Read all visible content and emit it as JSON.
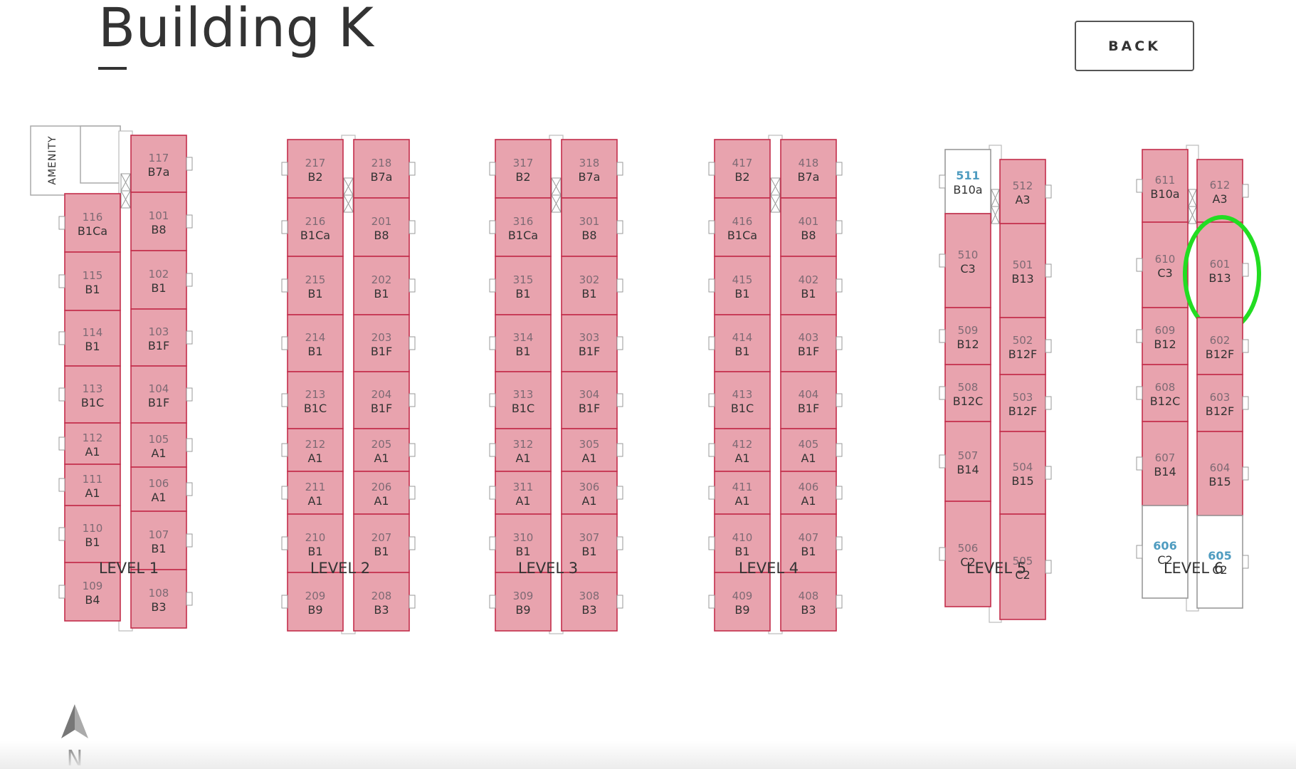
{
  "title": "Building K",
  "back_button": "BACK",
  "compass": "N",
  "colors": {
    "sold_fill": "#e8a3ae",
    "sold_stroke": "#c32e4b",
    "available_number": "#4f9cc0",
    "highlight": "#22dd22"
  },
  "levels": [
    {
      "label": "LEVEL 1",
      "amenity": "AMENITY",
      "left_units": [
        {
          "num": "116",
          "type": "B1Ca"
        },
        {
          "num": "115",
          "type": "B1"
        },
        {
          "num": "114",
          "type": "B1"
        },
        {
          "num": "113",
          "type": "B1C"
        },
        {
          "num": "112",
          "type": "A1"
        },
        {
          "num": "111",
          "type": "A1"
        },
        {
          "num": "110",
          "type": "B1"
        },
        {
          "num": "109",
          "type": "B4"
        }
      ],
      "right_units": [
        {
          "num": "117",
          "type": "B7a"
        },
        {
          "num": "101",
          "type": "B8"
        },
        {
          "num": "102",
          "type": "B1"
        },
        {
          "num": "103",
          "type": "B1F"
        },
        {
          "num": "104",
          "type": "B1F"
        },
        {
          "num": "105",
          "type": "A1"
        },
        {
          "num": "106",
          "type": "A1"
        },
        {
          "num": "107",
          "type": "B1"
        },
        {
          "num": "108",
          "type": "B3"
        }
      ]
    },
    {
      "label": "LEVEL 2",
      "left_units": [
        {
          "num": "217",
          "type": "B2"
        },
        {
          "num": "216",
          "type": "B1Ca"
        },
        {
          "num": "215",
          "type": "B1"
        },
        {
          "num": "214",
          "type": "B1"
        },
        {
          "num": "213",
          "type": "B1C"
        },
        {
          "num": "212",
          "type": "A1"
        },
        {
          "num": "211",
          "type": "A1"
        },
        {
          "num": "210",
          "type": "B1"
        },
        {
          "num": "209",
          "type": "B9"
        }
      ],
      "right_units": [
        {
          "num": "218",
          "type": "B7a"
        },
        {
          "num": "201",
          "type": "B8"
        },
        {
          "num": "202",
          "type": "B1"
        },
        {
          "num": "203",
          "type": "B1F"
        },
        {
          "num": "204",
          "type": "B1F"
        },
        {
          "num": "205",
          "type": "A1"
        },
        {
          "num": "206",
          "type": "A1"
        },
        {
          "num": "207",
          "type": "B1"
        },
        {
          "num": "208",
          "type": "B3"
        }
      ]
    },
    {
      "label": "LEVEL 3",
      "left_units": [
        {
          "num": "317",
          "type": "B2"
        },
        {
          "num": "316",
          "type": "B1Ca"
        },
        {
          "num": "315",
          "type": "B1"
        },
        {
          "num": "314",
          "type": "B1"
        },
        {
          "num": "313",
          "type": "B1C"
        },
        {
          "num": "312",
          "type": "A1"
        },
        {
          "num": "311",
          "type": "A1"
        },
        {
          "num": "310",
          "type": "B1"
        },
        {
          "num": "309",
          "type": "B9"
        }
      ],
      "right_units": [
        {
          "num": "318",
          "type": "B7a"
        },
        {
          "num": "301",
          "type": "B8"
        },
        {
          "num": "302",
          "type": "B1"
        },
        {
          "num": "303",
          "type": "B1F"
        },
        {
          "num": "304",
          "type": "B1F"
        },
        {
          "num": "305",
          "type": "A1"
        },
        {
          "num": "306",
          "type": "A1"
        },
        {
          "num": "307",
          "type": "B1"
        },
        {
          "num": "308",
          "type": "B3"
        }
      ]
    },
    {
      "label": "LEVEL 4",
      "left_units": [
        {
          "num": "417",
          "type": "B2"
        },
        {
          "num": "416",
          "type": "B1Ca"
        },
        {
          "num": "415",
          "type": "B1"
        },
        {
          "num": "414",
          "type": "B1"
        },
        {
          "num": "413",
          "type": "B1C"
        },
        {
          "num": "412",
          "type": "A1"
        },
        {
          "num": "411",
          "type": "A1"
        },
        {
          "num": "410",
          "type": "B1"
        },
        {
          "num": "409",
          "type": "B9"
        }
      ],
      "right_units": [
        {
          "num": "418",
          "type": "B7a"
        },
        {
          "num": "401",
          "type": "B8"
        },
        {
          "num": "402",
          "type": "B1"
        },
        {
          "num": "403",
          "type": "B1F"
        },
        {
          "num": "404",
          "type": "B1F"
        },
        {
          "num": "405",
          "type": "A1"
        },
        {
          "num": "406",
          "type": "A1"
        },
        {
          "num": "407",
          "type": "B1"
        },
        {
          "num": "408",
          "type": "B3"
        }
      ]
    },
    {
      "label": "LEVEL 5",
      "left_units": [
        {
          "num": "511",
          "type": "B10a",
          "available": true
        },
        {
          "num": "510",
          "type": "C3"
        },
        {
          "num": "509",
          "type": "B12"
        },
        {
          "num": "508",
          "type": "B12C"
        },
        {
          "num": "507",
          "type": "B14"
        },
        {
          "num": "506",
          "type": "C2"
        }
      ],
      "right_units": [
        {
          "num": "512",
          "type": "A3"
        },
        {
          "num": "501",
          "type": "B13"
        },
        {
          "num": "502",
          "type": "B12F"
        },
        {
          "num": "503",
          "type": "B12F"
        },
        {
          "num": "504",
          "type": "B15"
        },
        {
          "num": "505",
          "type": "C2"
        }
      ]
    },
    {
      "label": "LEVEL 6",
      "left_units": [
        {
          "num": "611",
          "type": "B10a"
        },
        {
          "num": "610",
          "type": "C3"
        },
        {
          "num": "609",
          "type": "B12"
        },
        {
          "num": "608",
          "type": "B12C"
        },
        {
          "num": "607",
          "type": "B14"
        },
        {
          "num": "606",
          "type": "C2",
          "available": true
        }
      ],
      "right_units": [
        {
          "num": "612",
          "type": "A3"
        },
        {
          "num": "601",
          "type": "B13",
          "highlighted": true
        },
        {
          "num": "602",
          "type": "B12F"
        },
        {
          "num": "603",
          "type": "B12F"
        },
        {
          "num": "604",
          "type": "B15"
        },
        {
          "num": "605",
          "type": "C2",
          "available": true
        }
      ]
    }
  ]
}
